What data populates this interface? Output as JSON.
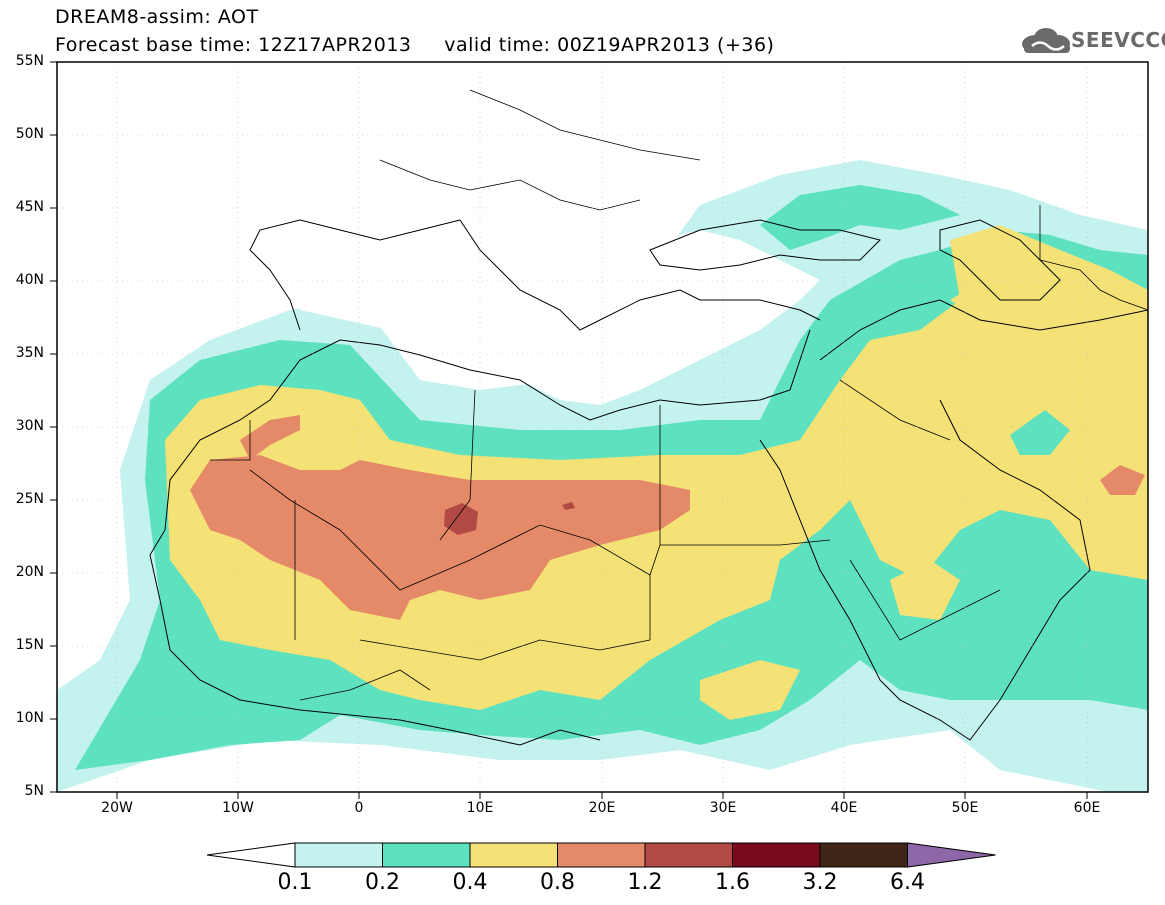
{
  "header": {
    "title": "DREAM8-assim: AOT",
    "subtitle": "Forecast base time: 12Z17APR2013     valid time: 00Z19APR2013 (+36)",
    "logo_text": "SEEVCCC"
  },
  "map": {
    "variable": "AOT",
    "projection": "lat-lon",
    "lon_range": [
      -25,
      65
    ],
    "lat_range": [
      5,
      55
    ],
    "lat_labels": [
      "55N",
      "50N",
      "45N",
      "40N",
      "35N",
      "30N",
      "25N",
      "20N",
      "15N",
      "10N",
      "5N"
    ],
    "lon_labels": [
      "20W",
      "10W",
      "0",
      "10E",
      "20E",
      "30E",
      "40E",
      "50E",
      "60E"
    ]
  },
  "colorbar": {
    "levels": [
      "0.1",
      "0.2",
      "0.4",
      "0.8",
      "1.2",
      "1.6",
      "3.2",
      "6.4"
    ],
    "colors": [
      "#ffffff",
      "#c4f2ee",
      "#5ee1bf",
      "#f5e277",
      "#e58a68",
      "#b04a43",
      "#7a0a1e",
      "#3f2518",
      "#8e67a8"
    ]
  }
}
